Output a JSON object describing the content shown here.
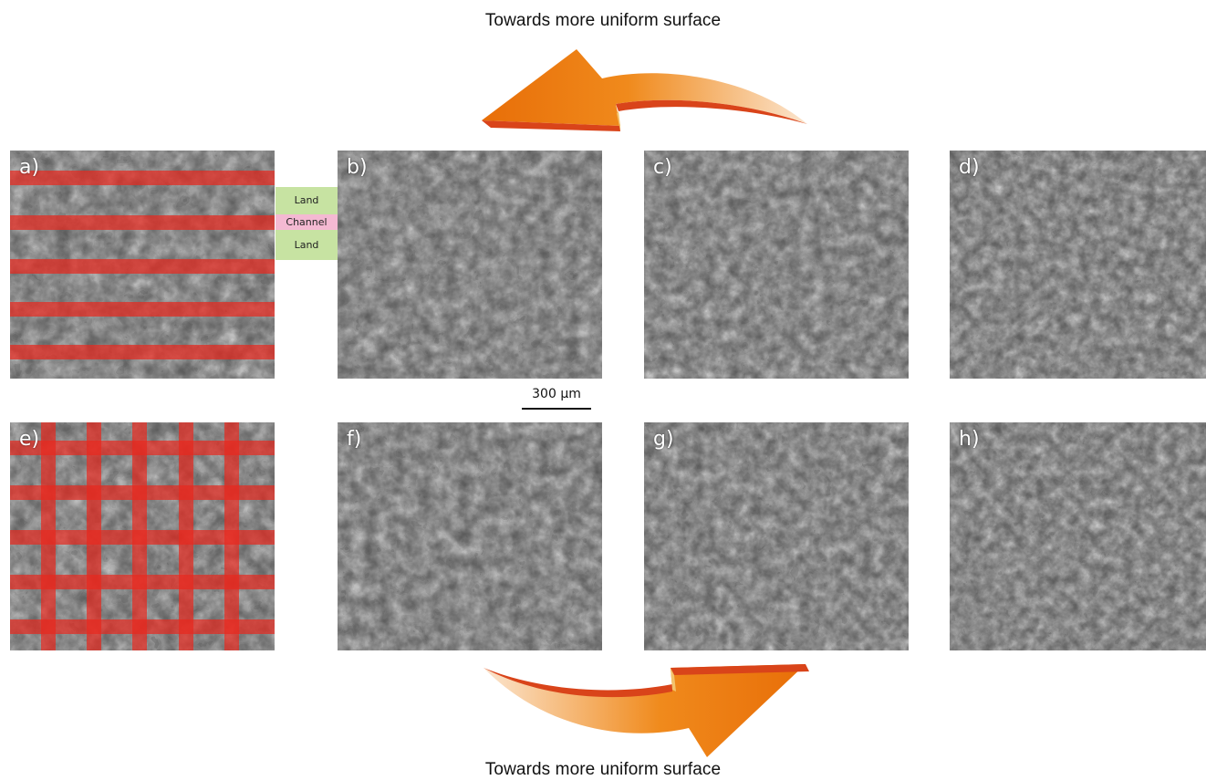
{
  "captions": {
    "top": "Towards more uniform surface",
    "bottom": "Towards more uniform surface"
  },
  "colors": {
    "arrow_orange": "#ee7f0a",
    "arrow_dark": "#d9441a",
    "channel_red": "#e8281e",
    "land_green": "#c7e3a2",
    "channel_pink": "#f4b9d2"
  },
  "legend": {
    "land_top": "Land",
    "channel": "Channel",
    "land_bottom": "Land"
  },
  "scalebar": {
    "label": "300 μm"
  },
  "panels": [
    {
      "label": "a)",
      "overlay": "horizontal-channels"
    },
    {
      "label": "b)",
      "overlay": "none"
    },
    {
      "label": "c)",
      "overlay": "none"
    },
    {
      "label": "d)",
      "overlay": "none"
    },
    {
      "label": "e)",
      "overlay": "grid-channels"
    },
    {
      "label": "f)",
      "overlay": "none"
    },
    {
      "label": "g)",
      "overlay": "none"
    },
    {
      "label": "h)",
      "overlay": "none"
    }
  ]
}
